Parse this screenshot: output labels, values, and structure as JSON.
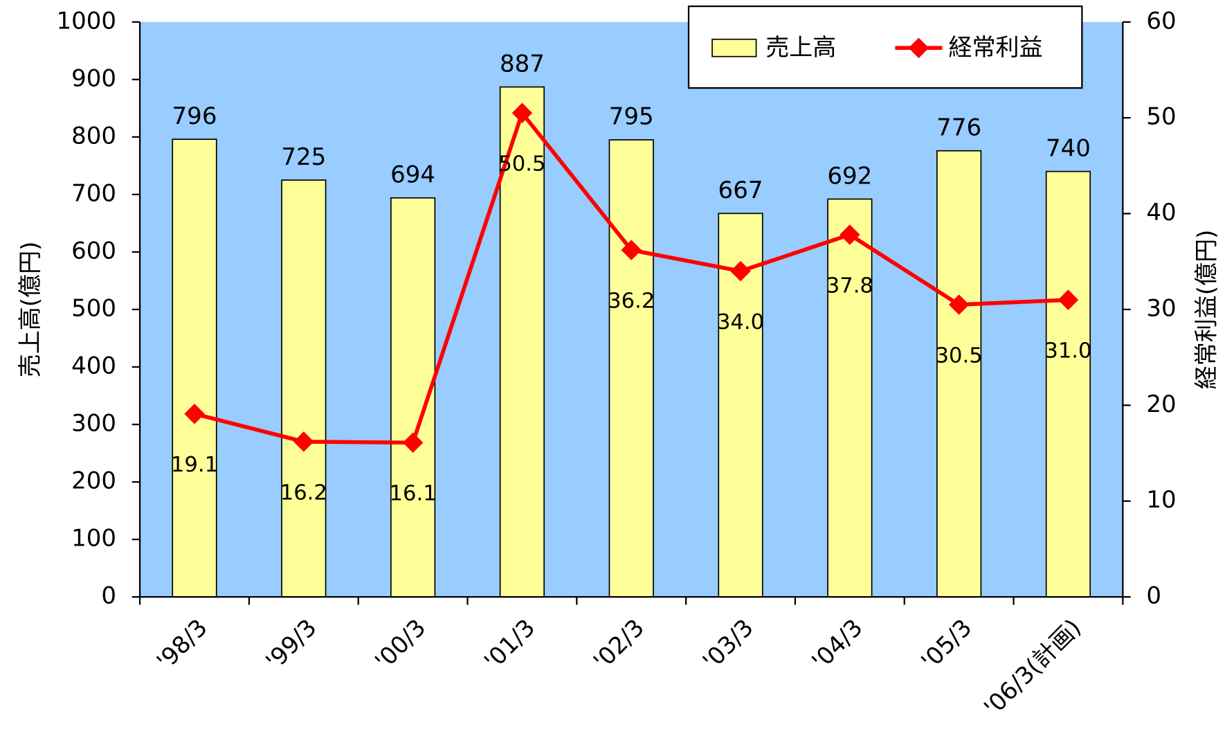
{
  "chart_data": {
    "type": "bar_line",
    "categories": [
      "'98/3",
      "'99/3",
      "'00/3",
      "'01/3",
      "'02/3",
      "'03/3",
      "'04/3",
      "'05/3",
      "'06/3(計画)"
    ],
    "series": [
      {
        "name": "売上高",
        "type": "bar",
        "color": "#ffff99",
        "values": [
          796,
          725,
          694,
          887,
          795,
          667,
          692,
          776,
          740
        ]
      },
      {
        "name": "経常利益",
        "type": "line",
        "axis": "y2",
        "color": "#ff0000",
        "values": [
          19.1,
          16.2,
          16.1,
          50.5,
          36.2,
          34.0,
          37.8,
          30.5,
          31.0
        ],
        "value_labels": [
          "19.1",
          "16.2",
          "16.1",
          "50.5",
          "36.2",
          "34.0",
          "37.8",
          "30.5",
          "31.0"
        ]
      }
    ],
    "ylabel": "売上高(億円)",
    "y2label": "経常利益(億円)",
    "ylim": [
      0,
      1000
    ],
    "yticks": [
      0,
      100,
      200,
      300,
      400,
      500,
      600,
      700,
      800,
      900,
      1000
    ],
    "y2lim": [
      0,
      60
    ],
    "y2ticks": [
      0,
      10,
      20,
      30,
      40,
      50,
      60
    ],
    "background": "#99ccff",
    "legend": "top-right"
  }
}
